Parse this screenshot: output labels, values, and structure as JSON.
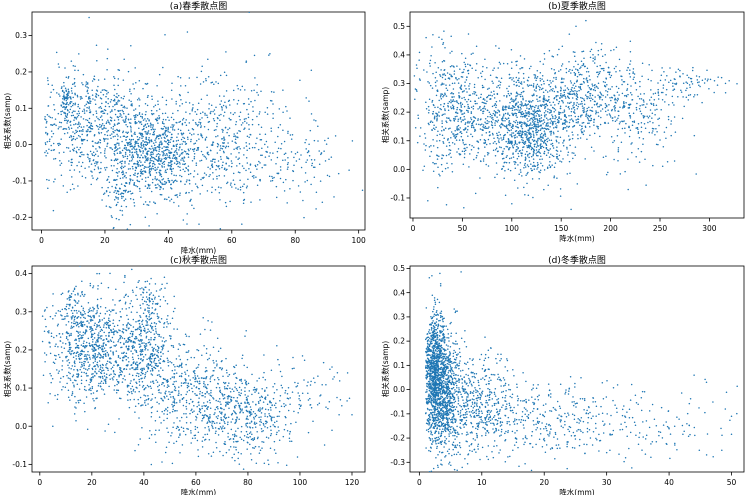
{
  "figure": {
    "point_color": "#1f77b4"
  },
  "chart_data": [
    {
      "type": "scatter",
      "title": "(a)春季散点图",
      "xlabel": "降水(mm)",
      "ylabel": "相关系数(samp)",
      "xlim": [
        -3,
        102
      ],
      "ylim": [
        -0.235,
        0.365
      ],
      "xticks": [
        0,
        20,
        40,
        60,
        80,
        100
      ],
      "yticks": [
        -0.2,
        -0.1,
        0.0,
        0.1,
        0.2,
        0.3
      ],
      "xtick_labels": [
        "0",
        "20",
        "40",
        "60",
        "80",
        "100"
      ],
      "ytick_labels": [
        "-0.2",
        "-0.1",
        "0.0",
        "0.1",
        "0.2",
        "0.3"
      ],
      "clusters": [
        {
          "cx": 18,
          "cy": 0.05,
          "sx": 10,
          "sy": 0.08,
          "n": 700
        },
        {
          "cx": 35,
          "cy": -0.03,
          "sx": 7,
          "sy": 0.06,
          "n": 700
        },
        {
          "cx": 8,
          "cy": 0.11,
          "sx": 1.2,
          "sy": 0.025,
          "n": 80
        },
        {
          "cx": 24,
          "cy": -0.14,
          "sx": 2.5,
          "sy": 0.03,
          "n": 60
        },
        {
          "cx": 55,
          "cy": 0.02,
          "sx": 12,
          "sy": 0.09,
          "n": 550
        },
        {
          "cx": 78,
          "cy": -0.05,
          "sx": 8,
          "sy": 0.06,
          "n": 120
        }
      ],
      "points": [
        [
          97,
          -0.07
        ],
        [
          15,
          0.35
        ],
        [
          46,
          0.31
        ],
        [
          72,
          0.25
        ],
        [
          28,
          -0.22
        ],
        [
          86,
          -0.09
        ]
      ]
    },
    {
      "type": "scatter",
      "title": "(b)夏季散点图",
      "xlabel": "降水(mm)",
      "ylabel": "相关系数(samp)",
      "xlim": [
        -3,
        335
      ],
      "ylim": [
        -0.17,
        0.55
      ],
      "xticks": [
        0,
        50,
        100,
        150,
        200,
        250,
        300
      ],
      "yticks": [
        -0.1,
        0.0,
        0.1,
        0.2,
        0.3,
        0.4,
        0.5
      ],
      "xtick_labels": [
        "0",
        "50",
        "100",
        "150",
        "200",
        "250",
        "300"
      ],
      "ytick_labels": [
        "-0.1",
        "0.0",
        "0.1",
        "0.2",
        "0.3",
        "0.4",
        "0.5"
      ],
      "clusters": [
        {
          "cx": 40,
          "cy": 0.2,
          "sx": 18,
          "sy": 0.11,
          "n": 450
        },
        {
          "cx": 120,
          "cy": 0.13,
          "sx": 20,
          "sy": 0.08,
          "n": 700
        },
        {
          "cx": 90,
          "cy": 0.2,
          "sx": 25,
          "sy": 0.09,
          "n": 400
        },
        {
          "cx": 170,
          "cy": 0.25,
          "sx": 25,
          "sy": 0.08,
          "n": 550
        },
        {
          "cx": 230,
          "cy": 0.2,
          "sx": 20,
          "sy": 0.1,
          "n": 200
        },
        {
          "cx": 270,
          "cy": 0.3,
          "sx": 22,
          "sy": 0.03,
          "n": 90
        }
      ],
      "points": [
        [
          160,
          -0.14
        ],
        [
          165,
          0.5
        ],
        [
          175,
          0.52
        ],
        [
          320,
          0.31
        ],
        [
          15,
          -0.11
        ],
        [
          100,
          -0.12
        ],
        [
          298,
          0.31
        ]
      ]
    },
    {
      "type": "scatter",
      "title": "(c)秋季散点图",
      "xlabel": "降水(mm)",
      "ylabel": "相关系数(samp)",
      "xlim": [
        -3,
        125
      ],
      "ylim": [
        -0.12,
        0.42
      ],
      "xticks": [
        0,
        20,
        40,
        60,
        80,
        100,
        120
      ],
      "yticks": [
        -0.1,
        0.0,
        0.1,
        0.2,
        0.3,
        0.4
      ],
      "xtick_labels": [
        "0",
        "20",
        "40",
        "60",
        "80",
        "100",
        "120"
      ],
      "ytick_labels": [
        "-0.1",
        "0.0",
        "0.1",
        "0.2",
        "0.3",
        "0.4"
      ],
      "clusters": [
        {
          "cx": 20,
          "cy": 0.2,
          "sx": 8,
          "sy": 0.07,
          "n": 800
        },
        {
          "cx": 40,
          "cy": 0.2,
          "sx": 6,
          "sy": 0.07,
          "n": 500
        },
        {
          "cx": 60,
          "cy": 0.08,
          "sx": 10,
          "sy": 0.07,
          "n": 500
        },
        {
          "cx": 80,
          "cy": 0.02,
          "sx": 8,
          "sy": 0.05,
          "n": 350
        },
        {
          "cx": 100,
          "cy": 0.08,
          "sx": 9,
          "sy": 0.05,
          "n": 90
        },
        {
          "cx": 43,
          "cy": 0.32,
          "sx": 2.5,
          "sy": 0.03,
          "n": 70
        },
        {
          "cx": 13,
          "cy": 0.32,
          "sx": 2.5,
          "sy": 0.03,
          "n": 50
        }
      ],
      "points": [
        [
          120,
          0.03
        ],
        [
          22,
          0.4
        ],
        [
          110,
          0.05
        ],
        [
          5,
          0.0
        ],
        [
          88,
          -0.1
        ],
        [
          75,
          -0.09
        ]
      ]
    },
    {
      "type": "scatter",
      "title": "(d)冬季散点图",
      "xlabel": "降水(mm)",
      "ylabel": "相关系数(samp)",
      "xlim": [
        -1.5,
        52
      ],
      "ylim": [
        -0.34,
        0.51
      ],
      "xticks": [
        0,
        10,
        20,
        30,
        40,
        50
      ],
      "yticks": [
        -0.3,
        -0.2,
        -0.1,
        0.0,
        0.1,
        0.2,
        0.3,
        0.4,
        0.5
      ],
      "xtick_labels": [
        "0",
        "10",
        "20",
        "30",
        "40",
        "50"
      ],
      "ytick_labels": [
        "-0.3",
        "-0.2",
        "-0.1",
        "0.0",
        "0.1",
        "0.2",
        "0.3",
        "0.4",
        "0.5"
      ],
      "clusters": [
        {
          "cx": 2.5,
          "cy": 0.08,
          "sx": 0.9,
          "sy": 0.12,
          "n": 900
        },
        {
          "cx": 4,
          "cy": -0.03,
          "sx": 1.4,
          "sy": 0.13,
          "n": 700
        },
        {
          "cx": 9,
          "cy": -0.05,
          "sx": 3.5,
          "sy": 0.1,
          "n": 500
        },
        {
          "cx": 20,
          "cy": -0.14,
          "sx": 7,
          "sy": 0.08,
          "n": 350
        },
        {
          "cx": 38,
          "cy": -0.15,
          "sx": 7,
          "sy": 0.08,
          "n": 100
        }
      ],
      "points": [
        [
          2,
          0.47
        ],
        [
          50,
          -0.11
        ],
        [
          49,
          -0.08
        ],
        [
          46,
          0.03
        ],
        [
          44,
          0.06
        ],
        [
          3,
          -0.32
        ],
        [
          30,
          -0.26
        ]
      ]
    }
  ]
}
